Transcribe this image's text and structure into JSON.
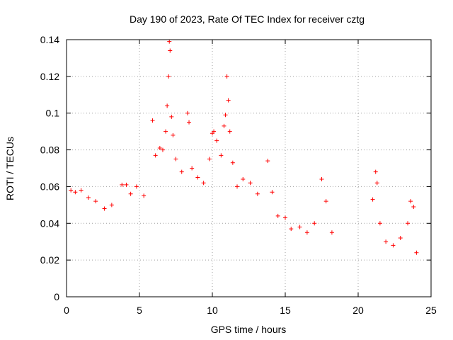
{
  "chart_data": {
    "type": "scatter",
    "title": "Day 190 of 2023, Rate Of TEC Index for receiver cztg",
    "xlabel": "GPS time / hours",
    "ylabel": "ROTI / TECUs",
    "xlim": [
      0,
      25
    ],
    "ylim": [
      0,
      0.14
    ],
    "xticks": [
      "0",
      "5",
      "10",
      "15",
      "20",
      "25"
    ],
    "yticks": [
      "0",
      "0.02",
      "0.04",
      "0.06",
      "0.08",
      "0.1",
      "0.12",
      "0.14"
    ],
    "grid": true,
    "marker": "+",
    "color": "#ff0000",
    "series": [
      {
        "points": [
          [
            0.3,
            0.058
          ],
          [
            0.6,
            0.057
          ],
          [
            1.0,
            0.058
          ],
          [
            1.5,
            0.054
          ],
          [
            2.0,
            0.052
          ],
          [
            2.6,
            0.048
          ],
          [
            3.1,
            0.05
          ],
          [
            3.8,
            0.061
          ],
          [
            4.1,
            0.061
          ],
          [
            4.4,
            0.056
          ],
          [
            4.8,
            0.06
          ],
          [
            5.3,
            0.055
          ],
          [
            5.9,
            0.096
          ],
          [
            6.1,
            0.077
          ],
          [
            6.4,
            0.081
          ],
          [
            6.6,
            0.08
          ],
          [
            6.8,
            0.09
          ],
          [
            6.9,
            0.104
          ],
          [
            7.0,
            0.12
          ],
          [
            7.05,
            0.139
          ],
          [
            7.1,
            0.134
          ],
          [
            7.2,
            0.098
          ],
          [
            7.3,
            0.088
          ],
          [
            7.5,
            0.075
          ],
          [
            7.9,
            0.068
          ],
          [
            8.3,
            0.1
          ],
          [
            8.4,
            0.095
          ],
          [
            8.6,
            0.07
          ],
          [
            9.0,
            0.065
          ],
          [
            9.4,
            0.062
          ],
          [
            9.8,
            0.075
          ],
          [
            10.0,
            0.089
          ],
          [
            10.1,
            0.09
          ],
          [
            10.3,
            0.085
          ],
          [
            10.6,
            0.077
          ],
          [
            10.8,
            0.093
          ],
          [
            10.9,
            0.099
          ],
          [
            11.0,
            0.12
          ],
          [
            11.1,
            0.107
          ],
          [
            11.2,
            0.09
          ],
          [
            11.4,
            0.073
          ],
          [
            11.7,
            0.06
          ],
          [
            12.1,
            0.064
          ],
          [
            12.6,
            0.062
          ],
          [
            13.1,
            0.056
          ],
          [
            13.8,
            0.074
          ],
          [
            14.1,
            0.057
          ],
          [
            14.5,
            0.044
          ],
          [
            15.0,
            0.043
          ],
          [
            15.4,
            0.037
          ],
          [
            16.0,
            0.038
          ],
          [
            16.5,
            0.035
          ],
          [
            17.0,
            0.04
          ],
          [
            17.5,
            0.064
          ],
          [
            17.8,
            0.052
          ],
          [
            18.2,
            0.035
          ],
          [
            21.0,
            0.053
          ],
          [
            21.2,
            0.068
          ],
          [
            21.3,
            0.062
          ],
          [
            21.5,
            0.04
          ],
          [
            21.9,
            0.03
          ],
          [
            22.4,
            0.028
          ],
          [
            22.9,
            0.032
          ],
          [
            23.4,
            0.04
          ],
          [
            23.6,
            0.052
          ],
          [
            23.8,
            0.049
          ],
          [
            24.0,
            0.024
          ]
        ]
      }
    ]
  }
}
